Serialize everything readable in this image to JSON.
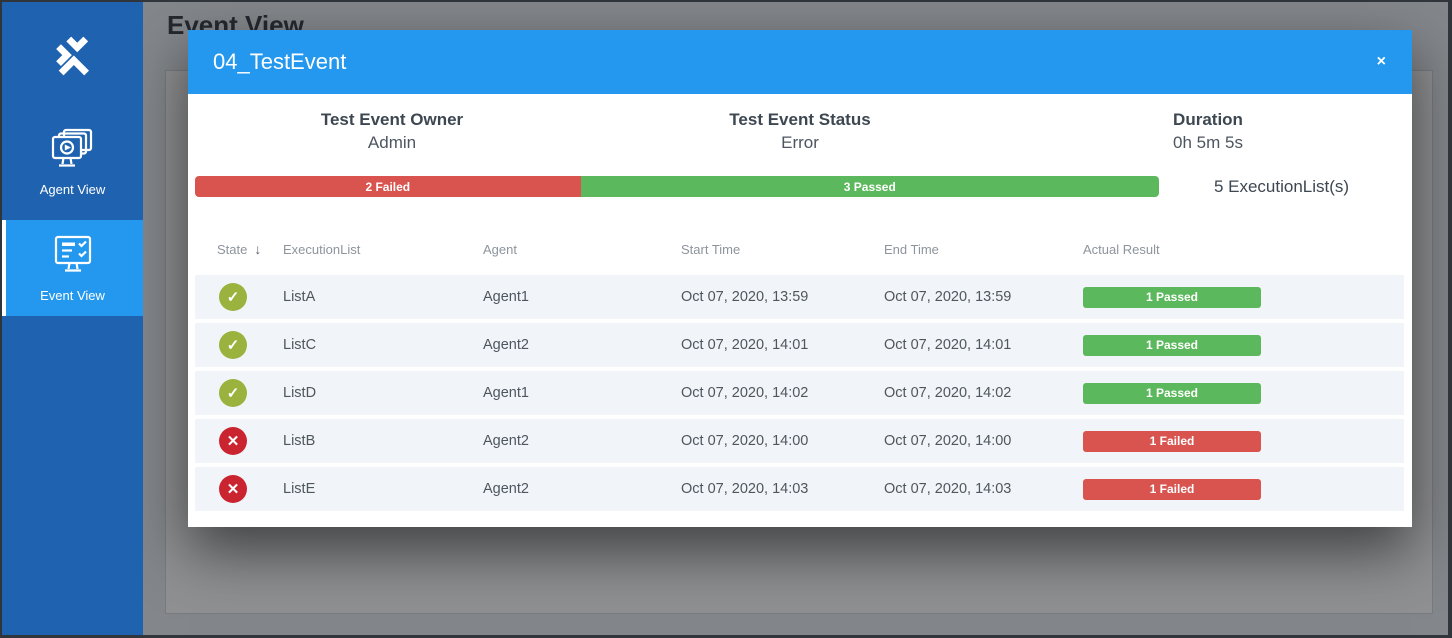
{
  "sidebar": {
    "items": [
      {
        "label": "Agent View",
        "active": false
      },
      {
        "label": "Event View",
        "active": true
      }
    ]
  },
  "page": {
    "title": "Event View"
  },
  "modal": {
    "title": "04_TestEvent",
    "close": "×",
    "summary": [
      {
        "label": "Test Event Owner",
        "value": "Admin"
      },
      {
        "label": "Test Event Status",
        "value": "Error"
      },
      {
        "label": "Duration",
        "value": "0h 5m 5s"
      }
    ],
    "progress": {
      "segments": [
        {
          "label": "2 Failed",
          "type": "failed",
          "percent": 40
        },
        {
          "label": "3 Passed",
          "type": "passed",
          "percent": 60
        }
      ],
      "total": "5 ExecutionList(s)"
    },
    "table": {
      "columns": [
        "State",
        "ExecutionList",
        "Agent",
        "Start Time",
        "End Time",
        "Actual Result"
      ],
      "sort_icon": "↓",
      "state_glyphs": {
        "passed": "✓",
        "failed": "✕"
      },
      "rows": [
        {
          "state": "passed",
          "execution_list": "ListA",
          "agent": "Agent1",
          "start_time": "Oct 07, 2020, 13:59",
          "end_time": "Oct 07, 2020, 13:59",
          "result": "1 Passed",
          "result_type": "passed"
        },
        {
          "state": "passed",
          "execution_list": "ListC",
          "agent": "Agent2",
          "start_time": "Oct 07, 2020, 14:01",
          "end_time": "Oct 07, 2020, 14:01",
          "result": "1 Passed",
          "result_type": "passed"
        },
        {
          "state": "passed",
          "execution_list": "ListD",
          "agent": "Agent1",
          "start_time": "Oct 07, 2020, 14:02",
          "end_time": "Oct 07, 2020, 14:02",
          "result": "1 Passed",
          "result_type": "passed"
        },
        {
          "state": "failed",
          "execution_list": "ListB",
          "agent": "Agent2",
          "start_time": "Oct 07, 2020, 14:00",
          "end_time": "Oct 07, 2020, 14:00",
          "result": "1 Failed",
          "result_type": "failed"
        },
        {
          "state": "failed",
          "execution_list": "ListE",
          "agent": "Agent2",
          "start_time": "Oct 07, 2020, 14:03",
          "end_time": "Oct 07, 2020, 14:03",
          "result": "1 Failed",
          "result_type": "failed"
        }
      ]
    }
  },
  "colors": {
    "accent": "#2498ef",
    "sidebar": "#1f62b0",
    "passed": "#5cb85c",
    "failed": "#d9534f",
    "state-passed": "#9ab23e",
    "state-failed": "#cb2431"
  }
}
